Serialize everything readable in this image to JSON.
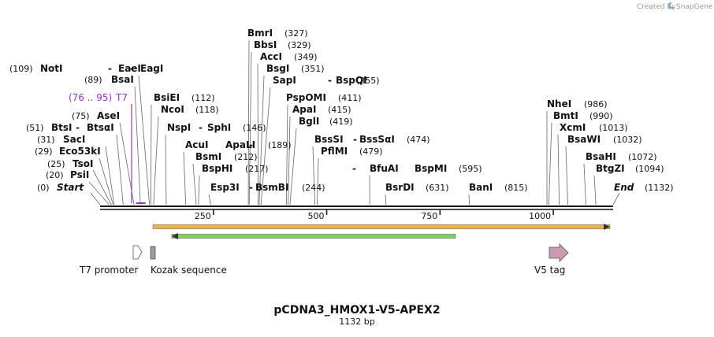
{
  "credit": {
    "text": "Created by",
    "brand": "SnapGene"
  },
  "map": {
    "title": "pCDNA3_HMOX1-V5-APEX2",
    "length_label": "1132 bp",
    "sequence_length": 1132,
    "ruler_ticks": [
      "250",
      "500",
      "750",
      "1000"
    ],
    "start_label": "Start",
    "start_position": "(0)",
    "end_label": "End",
    "end_position": "(1132)"
  },
  "primer": {
    "name": "T7",
    "range": "(76 .. 95)",
    "start": 76,
    "end": 95,
    "color": "#9b30d9"
  },
  "sites": [
    {
      "names": [
        "PsiI"
      ],
      "pos_text": "(20)",
      "pos": 20
    },
    {
      "names": [
        "TsoI"
      ],
      "pos_text": "(25)",
      "pos": 25
    },
    {
      "names": [
        "Eco53kI"
      ],
      "pos_text": "(29)",
      "pos": 29
    },
    {
      "names": [
        "SacI"
      ],
      "pos_text": "(31)",
      "pos": 31
    },
    {
      "names": [
        "BtsI",
        "BtsαI"
      ],
      "pos_text": "(51)",
      "pos": 51
    },
    {
      "names": [
        "AseI"
      ],
      "pos_text": "(75)",
      "pos": 75
    },
    {
      "names": [
        "BsaI"
      ],
      "pos_text": "(89)",
      "pos": 89
    },
    {
      "names": [
        "NotI",
        "EaeI",
        "EagI"
      ],
      "pos_text": "(109)",
      "pos": 109
    },
    {
      "names": [
        "BsiEI"
      ],
      "pos_text": "(112)",
      "pos": 112
    },
    {
      "names": [
        "NcoI"
      ],
      "pos_text": "(118)",
      "pos": 118
    },
    {
      "names": [
        "NspI",
        "SphI"
      ],
      "pos_text": "(146)",
      "pos": 146
    },
    {
      "names": [
        "AcuI",
        "ApaLI"
      ],
      "pos_text": "(189)",
      "pos": 189
    },
    {
      "names": [
        "BsmI"
      ],
      "pos_text": "(212)",
      "pos": 212
    },
    {
      "names": [
        "BspHI"
      ],
      "pos_text": "(217)",
      "pos": 217
    },
    {
      "names": [
        "Esp3I",
        "BsmBI"
      ],
      "pos_text": "(244)",
      "pos": 244
    },
    {
      "names": [
        "BmrI"
      ],
      "pos_text": "(327)",
      "pos": 327
    },
    {
      "names": [
        "BbsI"
      ],
      "pos_text": "(329)",
      "pos": 329
    },
    {
      "names": [
        "AccI"
      ],
      "pos_text": "(349)",
      "pos": 349
    },
    {
      "names": [
        "BsgI"
      ],
      "pos_text": "(351)",
      "pos": 351
    },
    {
      "names": [
        "SapI",
        "BspQI"
      ],
      "pos_text": "(355)",
      "pos": 355
    },
    {
      "names": [
        "PspOMI"
      ],
      "pos_text": "(411)",
      "pos": 411
    },
    {
      "names": [
        "ApaI"
      ],
      "pos_text": "(415)",
      "pos": 415
    },
    {
      "names": [
        "BglI"
      ],
      "pos_text": "(419)",
      "pos": 419
    },
    {
      "names": [
        "BssSI",
        "BssSαI"
      ],
      "pos_text": "(474)",
      "pos": 474
    },
    {
      "names": [
        "PflMI"
      ],
      "pos_text": "(479)",
      "pos": 479
    },
    {
      "names": [
        "BfuAI",
        "BspMI"
      ],
      "pos_text": "(595)",
      "pos": 595
    },
    {
      "names": [
        "BsrDI"
      ],
      "pos_text": "(631)",
      "pos": 631
    },
    {
      "names": [
        "BanI"
      ],
      "pos_text": "(815)",
      "pos": 815
    },
    {
      "names": [
        "NheI"
      ],
      "pos_text": "(986)",
      "pos": 986
    },
    {
      "names": [
        "BmtI"
      ],
      "pos_text": "(990)",
      "pos": 990
    },
    {
      "names": [
        "XcmI"
      ],
      "pos_text": "(1013)",
      "pos": 1013
    },
    {
      "names": [
        "BsaWI"
      ],
      "pos_text": "(1032)",
      "pos": 1032
    },
    {
      "names": [
        "BsaHI"
      ],
      "pos_text": "(1072)",
      "pos": 1072
    },
    {
      "names": [
        "BtgZI"
      ],
      "pos_text": "(1094)",
      "pos": 1094
    }
  ],
  "features": [
    {
      "name": "T7 promoter",
      "kind": "promoter",
      "color": "#ffffff"
    },
    {
      "name": "Kozak sequence",
      "kind": "regulatory",
      "color": "#9a9aa8"
    },
    {
      "name": "V5 tag",
      "kind": "tag",
      "color": "#cc99b3"
    }
  ],
  "orfs": [
    {
      "direction": "forward",
      "color": "#f2b33d"
    },
    {
      "direction": "reverse",
      "color": "#7fd35a"
    }
  ]
}
